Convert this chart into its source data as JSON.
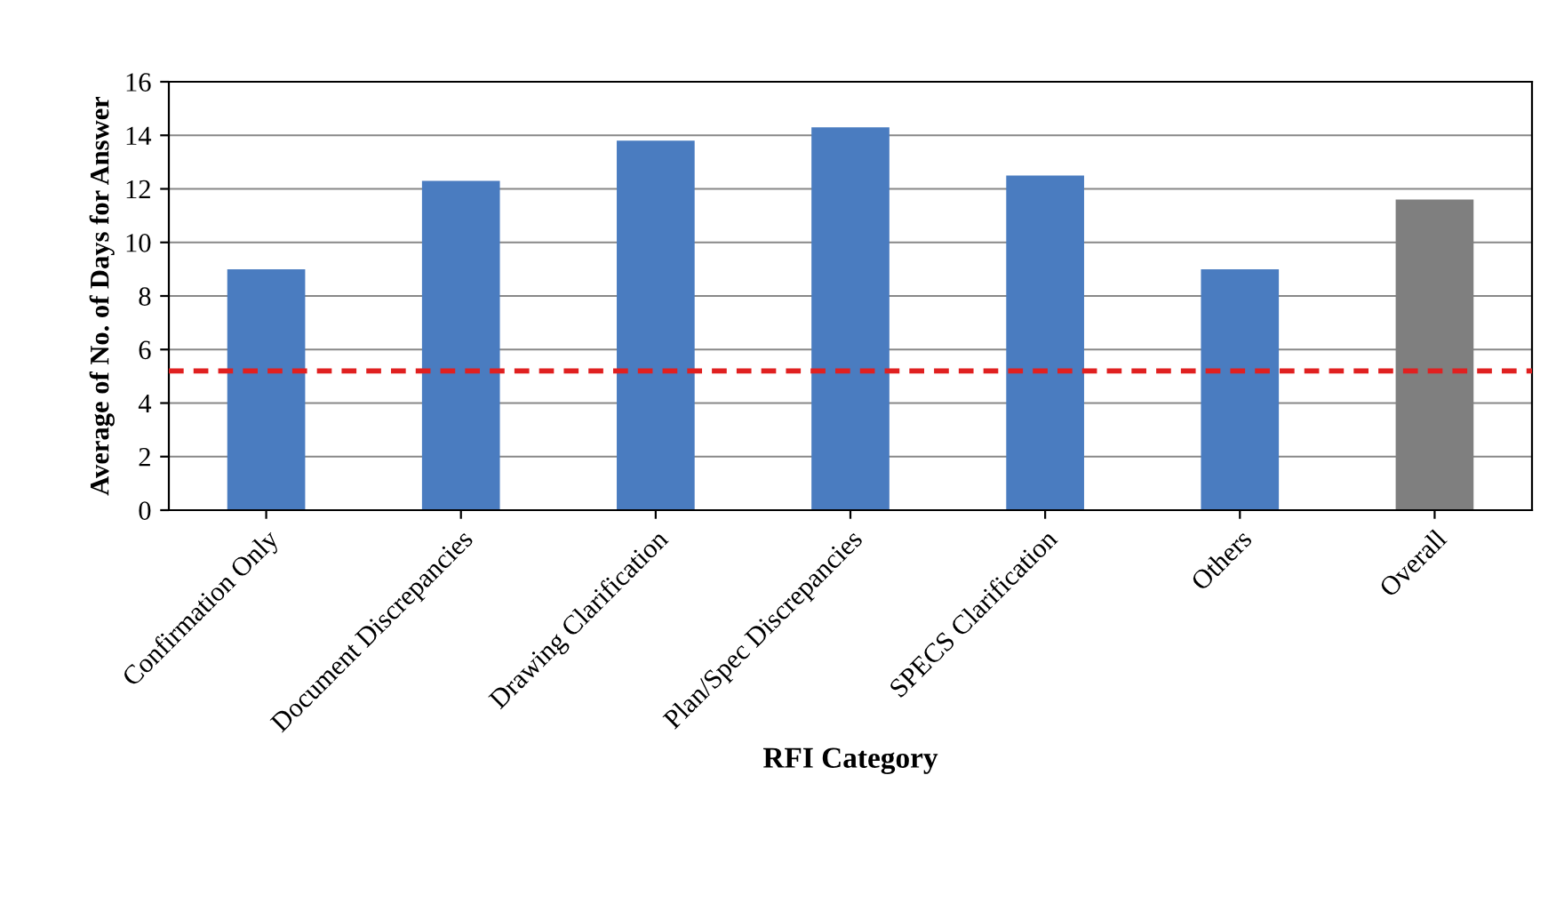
{
  "chart_data": {
    "type": "bar",
    "xlabel": "RFI Category",
    "ylabel": "Average of No. of Days for Answer",
    "categories": [
      "Confirmation Only",
      "Document Discrepancies",
      "Drawing Clarification",
      "Plan/Spec Discrepancies",
      "SPECS Clarification",
      "Others",
      "Overall"
    ],
    "values": [
      9.0,
      12.3,
      13.8,
      14.3,
      12.5,
      9.0,
      11.6
    ],
    "colors": [
      "#4a7cc0",
      "#4a7cc0",
      "#4a7cc0",
      "#4a7cc0",
      "#4a7cc0",
      "#4a7cc0",
      "#7f7f7f"
    ],
    "ylim": [
      0,
      16
    ],
    "yticks": [
      0,
      2,
      4,
      6,
      8,
      10,
      12,
      14,
      16
    ],
    "grid": "y",
    "ref_lines": [
      {
        "axis": "y",
        "value": 5.2,
        "color": "#e02020",
        "line_style": "dashed"
      }
    ]
  }
}
